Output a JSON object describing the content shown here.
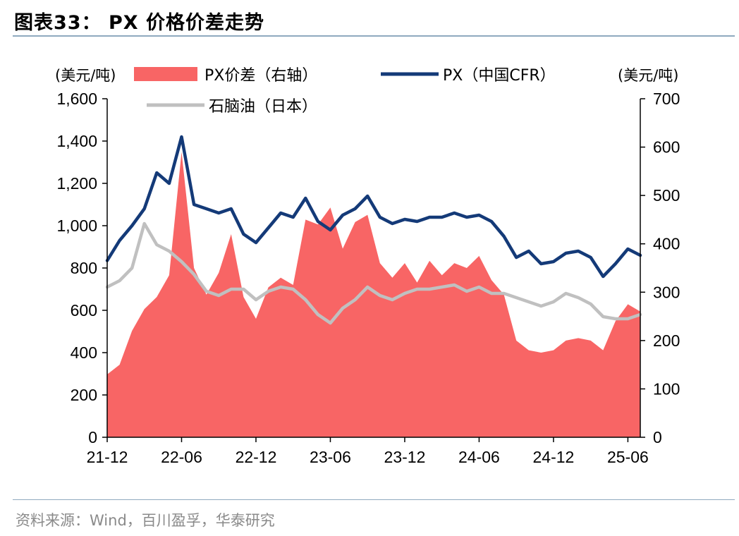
{
  "title": "图表33：  PX 价格价差走势",
  "source": "资料来源：Wind，百川盈孚，华泰研究",
  "colors": {
    "spread": "#f86565",
    "px": "#143a78",
    "naphtha": "#c0c0c0",
    "rule": "#8fa9bf"
  },
  "chart_data": {
    "type": "area+line",
    "left_unit": "(美元/吨)",
    "right_unit": "(美元/吨)",
    "left_axis": {
      "min": 0,
      "max": 1600,
      "ticks": [
        0,
        200,
        400,
        600,
        800,
        1000,
        1200,
        1400,
        1600
      ],
      "tick_labels": [
        "0",
        "200",
        "400",
        "600",
        "800",
        "1,000",
        "1,200",
        "1,400",
        "1,600"
      ]
    },
    "right_axis": {
      "min": 0,
      "max": 700,
      "ticks": [
        0,
        100,
        200,
        300,
        400,
        500,
        600,
        700
      ],
      "tick_labels": [
        "0",
        "100",
        "200",
        "300",
        "400",
        "500",
        "600",
        "700"
      ]
    },
    "x_axis": {
      "start": "2021-12",
      "end": "2025-06",
      "tick_labels": [
        "21-12",
        "22-06",
        "22-12",
        "23-06",
        "23-12",
        "24-06",
        "24-12",
        "25-06"
      ]
    },
    "legend": [
      "PX价差（右轴）",
      "PX（中国CFR）",
      "石脑油（日本）"
    ],
    "series": [
      {
        "name": "PX价差（右轴）",
        "axis": "right",
        "kind": "area",
        "points": [
          [
            "2021-12",
            130
          ],
          [
            "2022-01",
            150
          ],
          [
            "2022-02",
            220
          ],
          [
            "2022-03",
            265
          ],
          [
            "2022-04",
            290
          ],
          [
            "2022-05",
            335
          ],
          [
            "2022-06",
            590
          ],
          [
            "2022-07",
            350
          ],
          [
            "2022-08",
            295
          ],
          [
            "2022-09",
            340
          ],
          [
            "2022-10",
            420
          ],
          [
            "2022-11",
            290
          ],
          [
            "2022-12",
            245
          ],
          [
            "2023-01",
            310
          ],
          [
            "2023-02",
            330
          ],
          [
            "2023-03",
            315
          ],
          [
            "2023-04",
            450
          ],
          [
            "2023-05",
            440
          ],
          [
            "2023-06",
            475
          ],
          [
            "2023-07",
            390
          ],
          [
            "2023-08",
            445
          ],
          [
            "2023-09",
            460
          ],
          [
            "2023-10",
            360
          ],
          [
            "2023-11",
            330
          ],
          [
            "2023-12",
            360
          ],
          [
            "2024-01",
            320
          ],
          [
            "2024-02",
            365
          ],
          [
            "2024-03",
            335
          ],
          [
            "2024-04",
            360
          ],
          [
            "2024-05",
            350
          ],
          [
            "2024-06",
            375
          ],
          [
            "2024-07",
            325
          ],
          [
            "2024-08",
            295
          ],
          [
            "2024-09",
            200
          ],
          [
            "2024-10",
            180
          ],
          [
            "2024-11",
            175
          ],
          [
            "2024-12",
            180
          ],
          [
            "2025-01",
            200
          ],
          [
            "2025-02",
            205
          ],
          [
            "2025-03",
            200
          ],
          [
            "2025-04",
            180
          ],
          [
            "2025-05",
            240
          ],
          [
            "2025-06",
            275
          ],
          [
            "2025-07",
            260
          ]
        ]
      },
      {
        "name": "PX（中国CFR）",
        "axis": "left",
        "kind": "line",
        "points": [
          [
            "2021-12",
            835
          ],
          [
            "2022-01",
            930
          ],
          [
            "2022-02",
            1000
          ],
          [
            "2022-03",
            1080
          ],
          [
            "2022-04",
            1250
          ],
          [
            "2022-05",
            1200
          ],
          [
            "2022-06",
            1420
          ],
          [
            "2022-07",
            1100
          ],
          [
            "2022-08",
            1080
          ],
          [
            "2022-09",
            1060
          ],
          [
            "2022-10",
            1080
          ],
          [
            "2022-11",
            960
          ],
          [
            "2022-12",
            920
          ],
          [
            "2023-01",
            990
          ],
          [
            "2023-02",
            1060
          ],
          [
            "2023-03",
            1040
          ],
          [
            "2023-04",
            1130
          ],
          [
            "2023-05",
            1020
          ],
          [
            "2023-06",
            980
          ],
          [
            "2023-07",
            1050
          ],
          [
            "2023-08",
            1080
          ],
          [
            "2023-09",
            1140
          ],
          [
            "2023-10",
            1040
          ],
          [
            "2023-11",
            1010
          ],
          [
            "2023-12",
            1030
          ],
          [
            "2024-01",
            1020
          ],
          [
            "2024-02",
            1040
          ],
          [
            "2024-03",
            1040
          ],
          [
            "2024-04",
            1060
          ],
          [
            "2024-05",
            1040
          ],
          [
            "2024-06",
            1050
          ],
          [
            "2024-07",
            1020
          ],
          [
            "2024-08",
            950
          ],
          [
            "2024-09",
            850
          ],
          [
            "2024-10",
            880
          ],
          [
            "2024-11",
            820
          ],
          [
            "2024-12",
            830
          ],
          [
            "2025-01",
            870
          ],
          [
            "2025-02",
            880
          ],
          [
            "2025-03",
            850
          ],
          [
            "2025-04",
            760
          ],
          [
            "2025-05",
            820
          ],
          [
            "2025-06",
            890
          ],
          [
            "2025-07",
            860
          ]
        ]
      },
      {
        "name": "石脑油（日本）",
        "axis": "left",
        "kind": "line",
        "points": [
          [
            "2021-12",
            710
          ],
          [
            "2022-01",
            740
          ],
          [
            "2022-02",
            800
          ],
          [
            "2022-03",
            1010
          ],
          [
            "2022-04",
            910
          ],
          [
            "2022-05",
            880
          ],
          [
            "2022-06",
            830
          ],
          [
            "2022-07",
            770
          ],
          [
            "2022-08",
            690
          ],
          [
            "2022-09",
            670
          ],
          [
            "2022-10",
            700
          ],
          [
            "2022-11",
            700
          ],
          [
            "2022-12",
            650
          ],
          [
            "2023-01",
            690
          ],
          [
            "2023-02",
            710
          ],
          [
            "2023-03",
            700
          ],
          [
            "2023-04",
            650
          ],
          [
            "2023-05",
            580
          ],
          [
            "2023-06",
            540
          ],
          [
            "2023-07",
            610
          ],
          [
            "2023-08",
            650
          ],
          [
            "2023-09",
            710
          ],
          [
            "2023-10",
            670
          ],
          [
            "2023-11",
            650
          ],
          [
            "2023-12",
            680
          ],
          [
            "2024-01",
            700
          ],
          [
            "2024-02",
            700
          ],
          [
            "2024-03",
            710
          ],
          [
            "2024-04",
            720
          ],
          [
            "2024-05",
            690
          ],
          [
            "2024-06",
            710
          ],
          [
            "2024-07",
            680
          ],
          [
            "2024-08",
            680
          ],
          [
            "2024-09",
            660
          ],
          [
            "2024-10",
            640
          ],
          [
            "2024-11",
            620
          ],
          [
            "2024-12",
            640
          ],
          [
            "2025-01",
            680
          ],
          [
            "2025-02",
            660
          ],
          [
            "2025-03",
            630
          ],
          [
            "2025-04",
            570
          ],
          [
            "2025-05",
            560
          ],
          [
            "2025-06",
            560
          ],
          [
            "2025-07",
            580
          ]
        ]
      }
    ]
  }
}
